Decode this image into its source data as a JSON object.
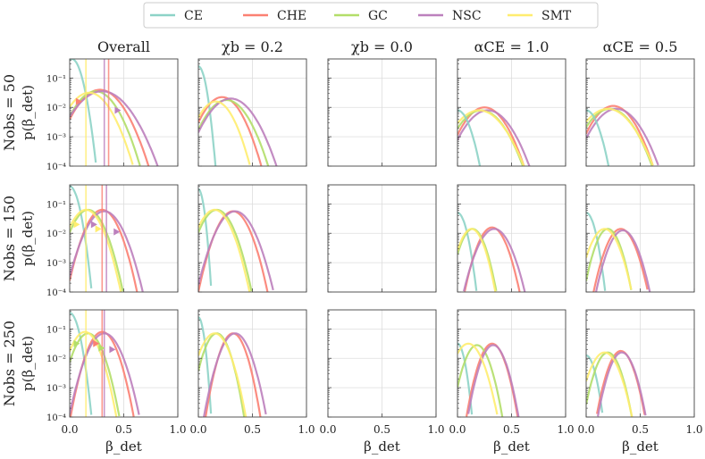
{
  "chart_data": {
    "type": "line",
    "xlabel": "β_det",
    "ylabel": "p(β_det)",
    "xlim": [
      0,
      1
    ],
    "ylim_log10": [
      -4,
      -0.35
    ],
    "yticks": [
      {
        "v": -1,
        "label": "10⁻¹"
      },
      {
        "v": -2,
        "label": "10⁻²"
      },
      {
        "v": -3,
        "label": "10⁻³"
      },
      {
        "v": -4,
        "label": "10⁻⁴"
      }
    ],
    "xticks": [
      {
        "v": 0,
        "label": "0.0"
      },
      {
        "v": 0.5,
        "label": "0.5"
      },
      {
        "v": 1,
        "label": "1.0"
      }
    ],
    "columns": [
      "Overall",
      "χb = 0.2",
      "χb = 0.0",
      "αCE = 1.0",
      "αCE = 0.5"
    ],
    "rows": [
      "Nobs = 50",
      "Nobs = 150",
      "Nobs = 250"
    ],
    "legend": [
      {
        "name": "CE",
        "color": "#8dd3c7"
      },
      {
        "name": "CHE",
        "color": "#fb8072"
      },
      {
        "name": "GC",
        "color": "#b3de69"
      },
      {
        "name": "NSC",
        "color": "#bc80bd"
      },
      {
        "name": "SMT",
        "color": "#ffed6f"
      }
    ],
    "panels": [
      {
        "row": 0,
        "col": 0,
        "series": [
          {
            "name": "CE",
            "mu": 0.02,
            "sigma": 0.055,
            "logpeak": -0.35
          },
          {
            "name": "CHE",
            "mu": 0.28,
            "sigma": 0.13,
            "logpeak": -1.4
          },
          {
            "name": "GC",
            "mu": 0.24,
            "sigma": 0.12,
            "logpeak": -1.45
          },
          {
            "name": "NSC",
            "mu": 0.3,
            "sigma": 0.15,
            "logpeak": -1.45
          },
          {
            "name": "SMT",
            "mu": 0.18,
            "sigma": 0.12,
            "logpeak": -1.5
          }
        ],
        "vlines": [
          {
            "x": 0.15,
            "s": "SMT"
          },
          {
            "x": 0.32,
            "s": "NSC"
          },
          {
            "x": 0.36,
            "s": "CHE"
          }
        ],
        "markers": [
          {
            "x": 0.09,
            "s": "CHE",
            "y": -1.8
          },
          {
            "x": 0.45,
            "s": "NSC",
            "y": -2.1
          }
        ]
      },
      {
        "row": 0,
        "col": 1,
        "series": [
          {
            "name": "CE",
            "mu": 0.0,
            "sigma": 0.04,
            "logpeak": -0.6
          },
          {
            "name": "CHE",
            "mu": 0.22,
            "sigma": 0.11,
            "logpeak": -1.65
          },
          {
            "name": "GC",
            "mu": 0.26,
            "sigma": 0.12,
            "logpeak": -1.75
          },
          {
            "name": "NSC",
            "mu": 0.3,
            "sigma": 0.13,
            "logpeak": -1.7
          },
          {
            "name": "SMT",
            "mu": 0.16,
            "sigma": 0.1,
            "logpeak": -1.8
          }
        ],
        "vlines": [],
        "markers": []
      },
      {
        "row": 0,
        "col": 2,
        "series": [],
        "vlines": [],
        "markers": []
      },
      {
        "row": 0,
        "col": 3,
        "series": [
          {
            "name": "CHE",
            "mu": 0.25,
            "sigma": 0.12,
            "logpeak": -2.0
          },
          {
            "name": "GC",
            "mu": 0.22,
            "sigma": 0.13,
            "logpeak": -2.1
          },
          {
            "name": "NSC",
            "mu": 0.28,
            "sigma": 0.13,
            "logpeak": -2.1
          },
          {
            "name": "SMT",
            "mu": 0.2,
            "sigma": 0.14,
            "logpeak": -2.1
          },
          {
            "name": "CE",
            "mu": 0.0,
            "sigma": 0.07,
            "logpeak": -2.1
          }
        ],
        "vlines": [],
        "markers": []
      },
      {
        "row": 0,
        "col": 4,
        "series": [
          {
            "name": "CHE",
            "mu": 0.25,
            "sigma": 0.12,
            "logpeak": -1.95
          },
          {
            "name": "GC",
            "mu": 0.22,
            "sigma": 0.13,
            "logpeak": -2.05
          },
          {
            "name": "NSC",
            "mu": 0.28,
            "sigma": 0.13,
            "logpeak": -2.05
          },
          {
            "name": "SMT",
            "mu": 0.2,
            "sigma": 0.14,
            "logpeak": -2.05
          },
          {
            "name": "CE",
            "mu": 0.0,
            "sigma": 0.07,
            "logpeak": -2.1
          }
        ],
        "vlines": [],
        "markers": []
      },
      {
        "row": 1,
        "col": 0,
        "series": [
          {
            "name": "CE",
            "mu": 0.0,
            "sigma": 0.05,
            "logpeak": -0.4
          },
          {
            "name": "CHE",
            "mu": 0.3,
            "sigma": 0.09,
            "logpeak": -1.2
          },
          {
            "name": "GC",
            "mu": 0.17,
            "sigma": 0.09,
            "logpeak": -1.2
          },
          {
            "name": "NSC",
            "mu": 0.32,
            "sigma": 0.1,
            "logpeak": -1.25
          },
          {
            "name": "SMT",
            "mu": 0.15,
            "sigma": 0.09,
            "logpeak": -1.2
          }
        ],
        "vlines": [
          {
            "x": 0.15,
            "s": "SMT"
          },
          {
            "x": 0.3,
            "s": "CHE"
          },
          {
            "x": 0.34,
            "s": "NSC"
          }
        ],
        "markers": [
          {
            "x": 0.07,
            "s": "SMT",
            "y": -1.7
          },
          {
            "x": 0.23,
            "s": "NSC",
            "y": -1.7
          },
          {
            "x": 0.27,
            "s": "SMT",
            "y": -1.85
          },
          {
            "x": 0.44,
            "s": "NSC",
            "y": -1.95
          }
        ]
      },
      {
        "row": 1,
        "col": 1,
        "series": [
          {
            "name": "CE",
            "mu": 0.0,
            "sigma": 0.03,
            "logpeak": -0.5
          },
          {
            "name": "CHE",
            "mu": 0.32,
            "sigma": 0.09,
            "logpeak": -1.25
          },
          {
            "name": "GC",
            "mu": 0.17,
            "sigma": 0.09,
            "logpeak": -1.2
          },
          {
            "name": "NSC",
            "mu": 0.34,
            "sigma": 0.1,
            "logpeak": -1.25
          },
          {
            "name": "SMT",
            "mu": 0.15,
            "sigma": 0.09,
            "logpeak": -1.2
          }
        ],
        "vlines": [],
        "markers": []
      },
      {
        "row": 1,
        "col": 2,
        "series": [],
        "vlines": [],
        "markers": []
      },
      {
        "row": 1,
        "col": 3,
        "series": [
          {
            "name": "CE",
            "mu": 0.0,
            "sigma": 0.05,
            "logpeak": -1.3
          },
          {
            "name": "CHE",
            "mu": 0.32,
            "sigma": 0.08,
            "logpeak": -1.8
          },
          {
            "name": "GC",
            "mu": 0.14,
            "sigma": 0.07,
            "logpeak": -1.85
          },
          {
            "name": "NSC",
            "mu": 0.34,
            "sigma": 0.09,
            "logpeak": -1.85
          },
          {
            "name": "SMT",
            "mu": 0.13,
            "sigma": 0.07,
            "logpeak": -1.85
          }
        ],
        "vlines": [],
        "markers": []
      },
      {
        "row": 1,
        "col": 4,
        "series": [
          {
            "name": "CE",
            "mu": 0.0,
            "sigma": 0.05,
            "logpeak": -1.3
          },
          {
            "name": "CHE",
            "mu": 0.32,
            "sigma": 0.08,
            "logpeak": -1.85
          },
          {
            "name": "GC",
            "mu": 0.2,
            "sigma": 0.07,
            "logpeak": -1.85
          },
          {
            "name": "NSC",
            "mu": 0.34,
            "sigma": 0.08,
            "logpeak": -1.9
          },
          {
            "name": "SMT",
            "mu": 0.17,
            "sigma": 0.08,
            "logpeak": -1.85
          }
        ],
        "vlines": [],
        "markers": []
      },
      {
        "row": 2,
        "col": 0,
        "series": [
          {
            "name": "CE",
            "mu": 0.0,
            "sigma": 0.05,
            "logpeak": -0.45
          },
          {
            "name": "CHE",
            "mu": 0.3,
            "sigma": 0.08,
            "logpeak": -1.1
          },
          {
            "name": "GC",
            "mu": 0.17,
            "sigma": 0.08,
            "logpeak": -1.15
          },
          {
            "name": "NSC",
            "mu": 0.32,
            "sigma": 0.09,
            "logpeak": -1.15
          },
          {
            "name": "SMT",
            "mu": 0.14,
            "sigma": 0.08,
            "logpeak": -1.1
          }
        ],
        "vlines": [
          {
            "x": 0.15,
            "s": "SMT"
          },
          {
            "x": 0.3,
            "s": "CHE"
          },
          {
            "x": 0.32,
            "s": "NSC"
          }
        ],
        "markers": [
          {
            "x": 0.07,
            "s": "GC",
            "y": -1.5
          },
          {
            "x": 0.25,
            "s": "CHE",
            "y": -1.5
          },
          {
            "x": 0.3,
            "s": "GC",
            "y": -1.65
          },
          {
            "x": 0.4,
            "s": "NSC",
            "y": -1.7
          }
        ]
      },
      {
        "row": 2,
        "col": 1,
        "series": [
          {
            "name": "CE",
            "mu": 0.0,
            "sigma": 0.03,
            "logpeak": -0.6
          },
          {
            "name": "CHE",
            "mu": 0.32,
            "sigma": 0.07,
            "logpeak": -1.15
          },
          {
            "name": "GC",
            "mu": 0.17,
            "sigma": 0.07,
            "logpeak": -1.15
          },
          {
            "name": "NSC",
            "mu": 0.34,
            "sigma": 0.08,
            "logpeak": -1.15
          },
          {
            "name": "SMT",
            "mu": 0.15,
            "sigma": 0.08,
            "logpeak": -1.15
          }
        ],
        "vlines": [],
        "markers": []
      },
      {
        "row": 2,
        "col": 2,
        "series": [],
        "vlines": [],
        "markers": []
      },
      {
        "row": 2,
        "col": 3,
        "series": [
          {
            "name": "CE",
            "mu": 0.0,
            "sigma": 0.04,
            "logpeak": -1.5
          },
          {
            "name": "CHE",
            "mu": 0.32,
            "sigma": 0.07,
            "logpeak": -1.5
          },
          {
            "name": "GC",
            "mu": 0.18,
            "sigma": 0.07,
            "logpeak": -1.55
          },
          {
            "name": "NSC",
            "mu": 0.33,
            "sigma": 0.07,
            "logpeak": -1.55
          },
          {
            "name": "SMT",
            "mu": 0.1,
            "sigma": 0.08,
            "logpeak": -1.5
          }
        ],
        "vlines": [],
        "markers": []
      },
      {
        "row": 2,
        "col": 4,
        "series": [
          {
            "name": "CE",
            "mu": 0.0,
            "sigma": 0.05,
            "logpeak": -1.9
          },
          {
            "name": "CHE",
            "mu": 0.32,
            "sigma": 0.07,
            "logpeak": -1.75
          },
          {
            "name": "GC",
            "mu": 0.2,
            "sigma": 0.07,
            "logpeak": -1.8
          },
          {
            "name": "NSC",
            "mu": 0.33,
            "sigma": 0.07,
            "logpeak": -1.8
          },
          {
            "name": "SMT",
            "mu": 0.17,
            "sigma": 0.08,
            "logpeak": -1.8
          }
        ],
        "vlines": [],
        "markers": []
      }
    ]
  }
}
